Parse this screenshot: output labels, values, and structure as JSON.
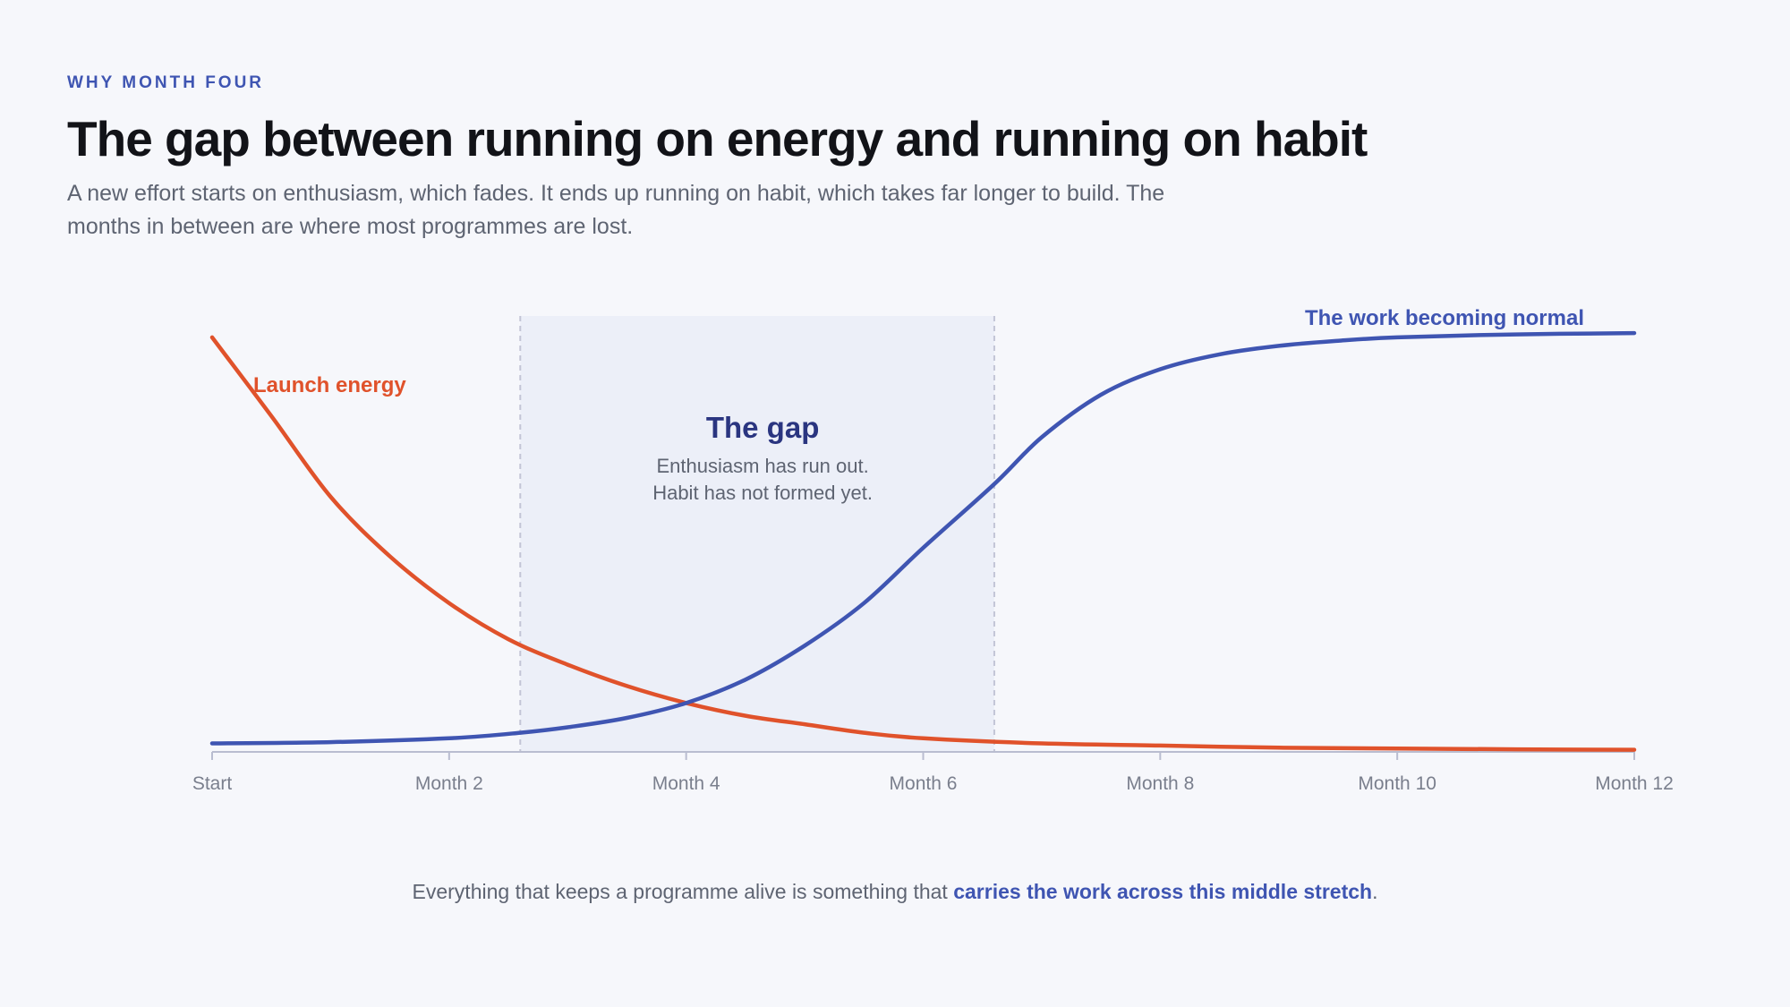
{
  "header": {
    "eyebrow": "WHY MONTH FOUR",
    "title": "The gap between running on energy and running on habit",
    "subtitle": "A new effort starts on enthusiasm, which fades. It ends up running on habit, which takes far longer to build. The months in between are where most programmes are lost."
  },
  "chart_data": {
    "type": "line",
    "xlabel": "",
    "ylabel": "",
    "xlim": [
      0,
      12
    ],
    "ylim": [
      0,
      1
    ],
    "grid": false,
    "x_ticks": [
      {
        "value": 0,
        "label": "Start"
      },
      {
        "value": 2,
        "label": "Month 2"
      },
      {
        "value": 4,
        "label": "Month 4"
      },
      {
        "value": 6,
        "label": "Month 6"
      },
      {
        "value": 8,
        "label": "Month 8"
      },
      {
        "value": 10,
        "label": "Month 10"
      },
      {
        "value": 12,
        "label": "Month 12"
      }
    ],
    "series": [
      {
        "name": "Launch energy",
        "color": "#e0522b",
        "x": [
          0,
          0.5,
          1,
          1.5,
          2,
          2.5,
          3,
          3.5,
          4,
          4.5,
          5,
          5.5,
          6,
          7,
          8,
          9,
          10,
          11,
          12
        ],
        "y": [
          0.975,
          0.79,
          0.6,
          0.46,
          0.35,
          0.265,
          0.205,
          0.155,
          0.115,
          0.085,
          0.065,
          0.045,
          0.032,
          0.02,
          0.015,
          0.01,
          0.008,
          0.006,
          0.005
        ]
      },
      {
        "name": "The work becoming normal",
        "color": "#3f55b2",
        "x": [
          0,
          1,
          2,
          2.6,
          3,
          3.5,
          4,
          4.5,
          5,
          5.5,
          6,
          6.6,
          7,
          7.5,
          8,
          8.5,
          9,
          9.5,
          10,
          11,
          12
        ],
        "y": [
          0.02,
          0.023,
          0.032,
          0.045,
          0.058,
          0.08,
          0.115,
          0.17,
          0.25,
          0.35,
          0.48,
          0.63,
          0.74,
          0.84,
          0.9,
          0.935,
          0.955,
          0.967,
          0.975,
          0.982,
          0.985
        ]
      }
    ],
    "annotations": {
      "gap": {
        "x_start": 2.6,
        "x_end": 6.6,
        "title": "The gap",
        "line1": "Enthusiasm has run out.",
        "line2": "Habit has not formed yet."
      }
    }
  },
  "footer": {
    "text_before": "Everything that keeps a programme alive is something that ",
    "emphasis": "carries the work across this middle stretch",
    "text_after": "."
  },
  "colors": {
    "accent": "#3f55b2",
    "energy": "#e0522b",
    "gap_fill": "#eceff8",
    "axis": "#b9bdd0"
  }
}
